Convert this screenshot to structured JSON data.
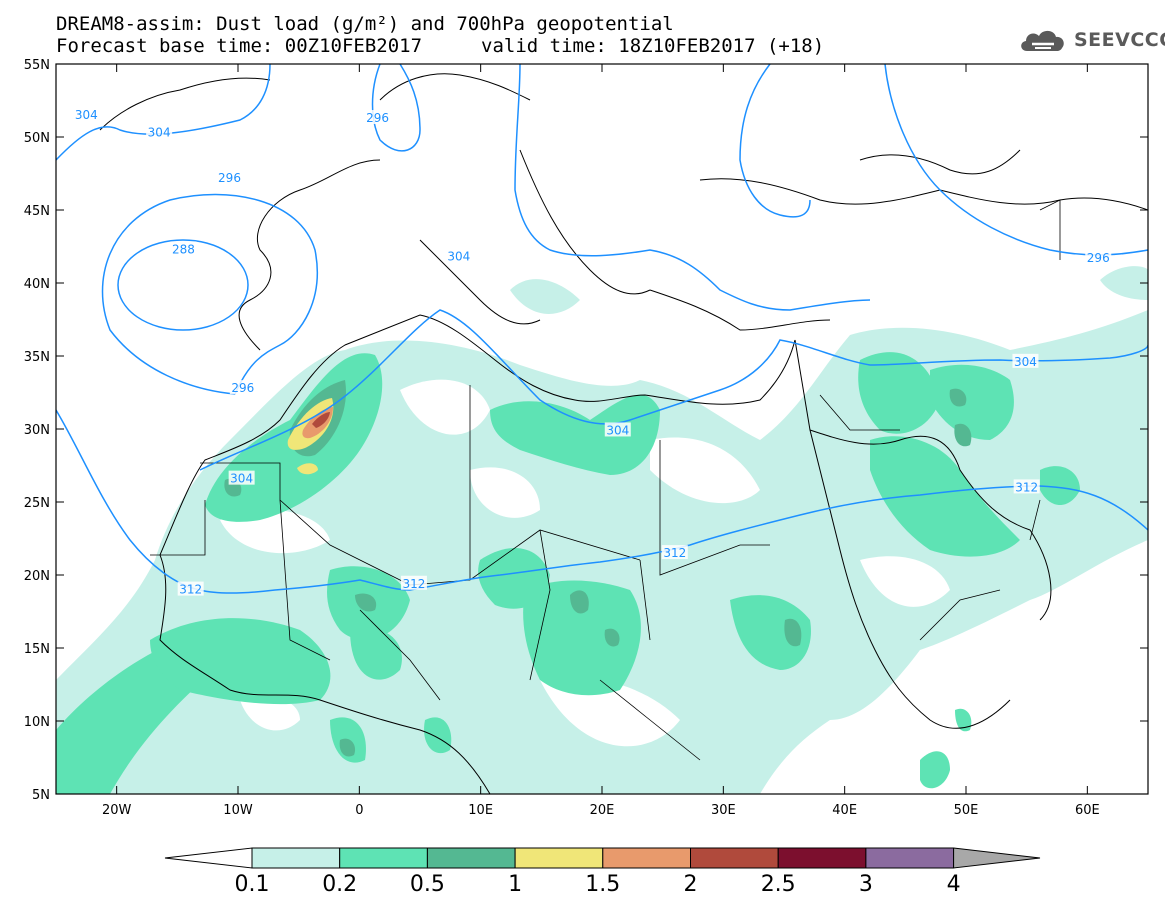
{
  "title": {
    "line1": "DREAM8-assim: Dust load (g/m²) and 700hPa geopotential",
    "line2_base": "Forecast base time: 00Z10FEB2017",
    "line2_valid": "valid time: 18Z10FEB2017 (+18)"
  },
  "logo": {
    "text": "SEEVCCC",
    "icon": "cloud-icon",
    "color": "#5a5a5a"
  },
  "map": {
    "lon_range": [
      -25,
      65
    ],
    "lat_range": [
      5,
      55
    ],
    "lat_ticks": [
      {
        "value": 55,
        "label": "55N"
      },
      {
        "value": 50,
        "label": "50N"
      },
      {
        "value": 45,
        "label": "45N"
      },
      {
        "value": 40,
        "label": "40N"
      },
      {
        "value": 35,
        "label": "35N"
      },
      {
        "value": 30,
        "label": "30N"
      },
      {
        "value": 25,
        "label": "25N"
      },
      {
        "value": 20,
        "label": "20N"
      },
      {
        "value": 15,
        "label": "15N"
      },
      {
        "value": 10,
        "label": "10N"
      },
      {
        "value": 5,
        "label": "5N"
      }
    ],
    "lon_ticks": [
      {
        "value": -20,
        "label": "20W"
      },
      {
        "value": -10,
        "label": "10W"
      },
      {
        "value": 0,
        "label": "0"
      },
      {
        "value": 10,
        "label": "10E"
      },
      {
        "value": 20,
        "label": "20E"
      },
      {
        "value": 30,
        "label": "30E"
      },
      {
        "value": 40,
        "label": "40E"
      },
      {
        "value": 50,
        "label": "50E"
      },
      {
        "value": 60,
        "label": "60E"
      }
    ],
    "contour_color": "#1e90ff",
    "contour_labels": [
      {
        "label": "304",
        "lon": -22.5,
        "lat": 51.5
      },
      {
        "label": "304",
        "lon": -16.5,
        "lat": 50.3
      },
      {
        "label": "296",
        "lon": -10.7,
        "lat": 47.2
      },
      {
        "label": "288",
        "lon": -14.5,
        "lat": 42.3
      },
      {
        "label": "296",
        "lon": 1.5,
        "lat": 51.3
      },
      {
        "label": "296",
        "lon": -9.6,
        "lat": 32.8
      },
      {
        "label": "304",
        "lon": -9.7,
        "lat": 26.6
      },
      {
        "label": "304",
        "lon": 8.2,
        "lat": 41.8
      },
      {
        "label": "304",
        "lon": 21.3,
        "lat": 29.9
      },
      {
        "label": "304",
        "lon": 54.9,
        "lat": 34.6
      },
      {
        "label": "296",
        "lon": 60.9,
        "lat": 41.7
      },
      {
        "label": "312",
        "lon": -13.9,
        "lat": 19.0
      },
      {
        "label": "312",
        "lon": 4.5,
        "lat": 19.4
      },
      {
        "label": "312",
        "lon": 26.0,
        "lat": 21.5
      },
      {
        "label": "312",
        "lon": 55.0,
        "lat": 26.0
      }
    ]
  },
  "colorbar": {
    "colors": [
      "#ffffff",
      "#c6f0e8",
      "#5ee3b4",
      "#54b892",
      "#f0e678",
      "#e89a6c",
      "#b04a3c",
      "#7c0f2e",
      "#8b6b9f",
      "#a8a8a8"
    ],
    "labels": [
      "0.1",
      "0.2",
      "0.5",
      "1",
      "1.5",
      "2",
      "2.5",
      "3",
      "4"
    ]
  }
}
